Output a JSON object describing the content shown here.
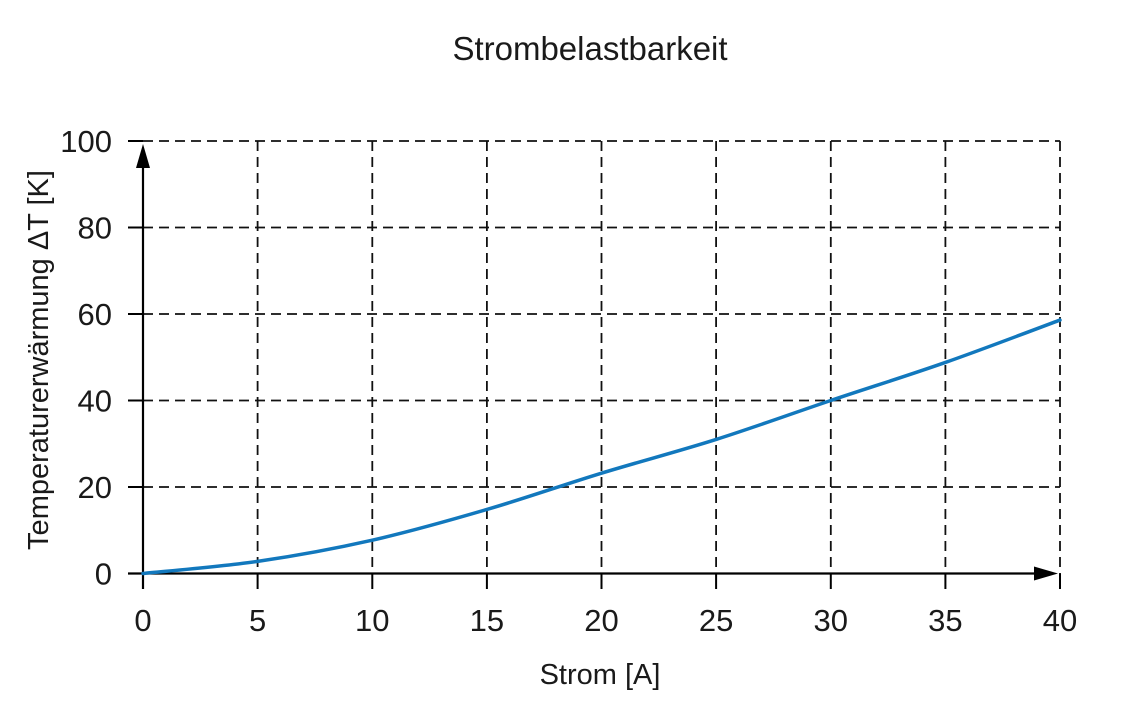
{
  "chart_data": {
    "type": "line",
    "title": "Strombelastbarkeit",
    "xlabel": "Strom [A]",
    "ylabel": "Temperaturerwärmung ΔT [K]",
    "xlim": [
      0,
      40
    ],
    "ylim": [
      0,
      100
    ],
    "xticks": [
      "0",
      "5",
      "10",
      "15",
      "20",
      "25",
      "30",
      "35",
      "40"
    ],
    "yticks": [
      "0",
      "20",
      "40",
      "60",
      "80",
      "100"
    ],
    "grid": "dashed black, on both axes",
    "legend": "none",
    "line_color": "#1278bd",
    "axis_color": "#000000",
    "series": [
      {
        "name": "Temperaturerwärmung",
        "x": [
          0,
          5,
          10,
          15,
          20,
          25,
          30,
          35,
          40
        ],
        "y": [
          0,
          2.8,
          7.7,
          14.8,
          23.2,
          31.0,
          40.0,
          48.8,
          58.6
        ]
      }
    ]
  }
}
